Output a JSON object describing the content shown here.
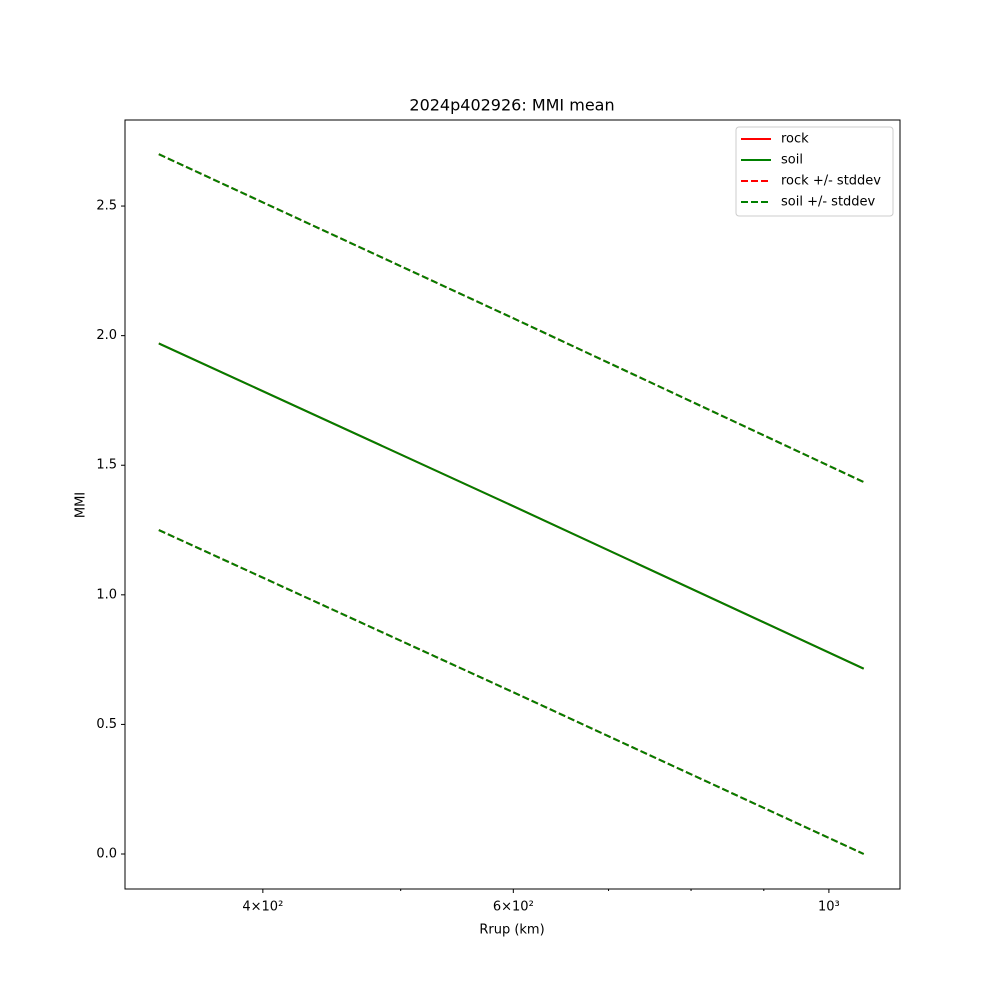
{
  "chart_data": {
    "type": "line",
    "title": "2024p402926: MMI mean",
    "x_label": "Rrup (km)",
    "y_label": "MMI",
    "x": [
      338,
      600,
      1058
    ],
    "series": [
      {
        "name": "rock",
        "color": "#ff0000",
        "style": "solid",
        "values": [
          1.97,
          1.342,
          0.715
        ]
      },
      {
        "name": "soil",
        "color": "#008000",
        "style": "solid",
        "values": [
          1.97,
          1.342,
          0.715
        ]
      },
      {
        "name": "rock +/- stddev",
        "color": "#ff0000",
        "style": "dashed",
        "upper": [
          2.7,
          2.067,
          1.435
        ],
        "lower": [
          1.25,
          0.624,
          0.0
        ]
      },
      {
        "name": "soil +/- stddev",
        "color": "#008000",
        "style": "dashed",
        "upper": [
          2.7,
          2.067,
          1.435
        ],
        "lower": [
          1.25,
          0.624,
          0.0
        ]
      }
    ],
    "xscale": "log",
    "xlim": [
      320,
      1122
    ],
    "xticks": [
      {
        "value": 400,
        "label": "4×10²"
      },
      {
        "value": 600,
        "label": "6×10²"
      },
      {
        "value": 1000,
        "label": "10³"
      }
    ],
    "xminorticks": [
      500,
      700,
      800,
      900
    ],
    "ylim": [
      -0.135,
      2.832
    ],
    "yticks": [
      {
        "value": 0,
        "label": "0.0"
      },
      0.5,
      {
        "value": 1,
        "label": "1.0"
      },
      1.5,
      {
        "value": 2,
        "label": "2.0"
      },
      2.5
    ],
    "grid": false,
    "legend": "upper right"
  }
}
